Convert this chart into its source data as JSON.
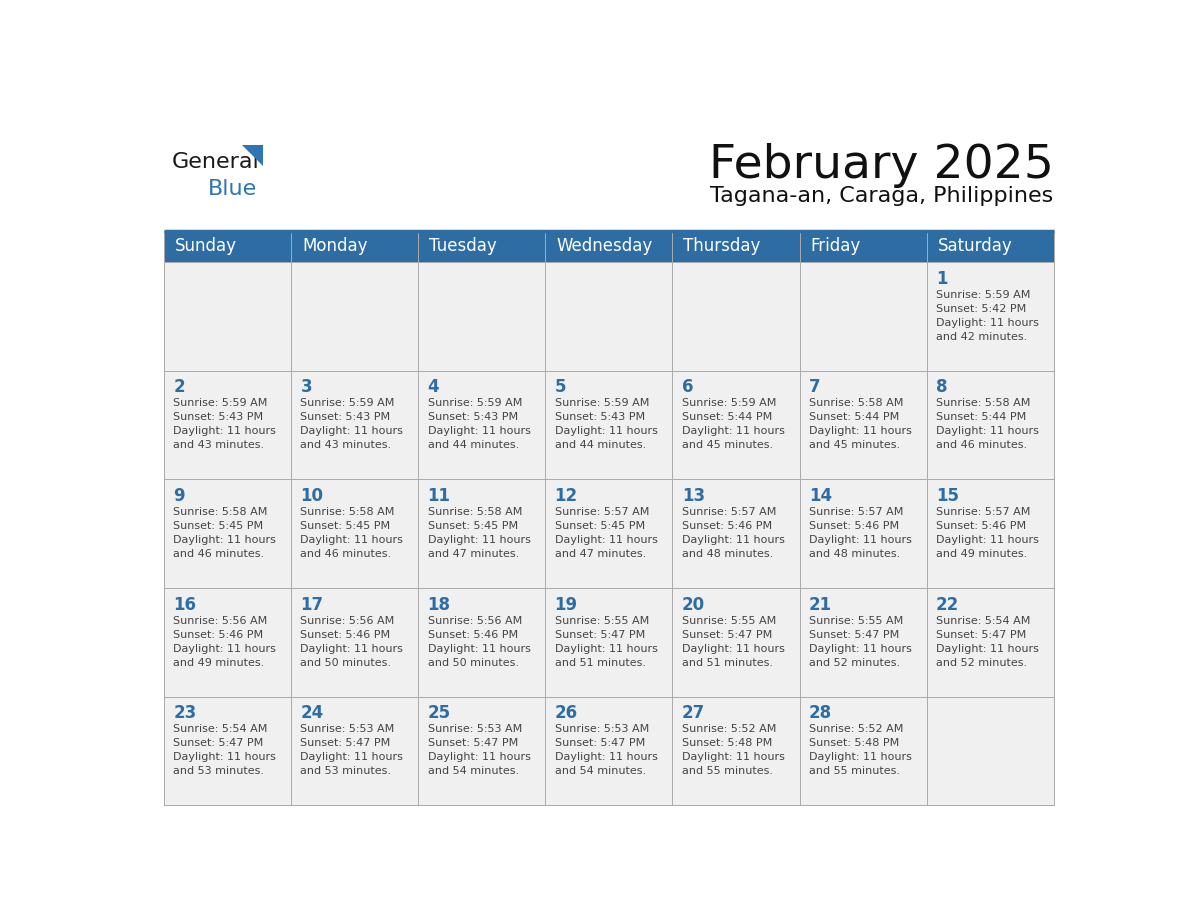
{
  "title": "February 2025",
  "subtitle": "Tagana-an, Caraga, Philippines",
  "header_bg": "#2E6DA4",
  "header_text": "#FFFFFF",
  "cell_bg": "#F0F0F0",
  "day_number_color": "#2E6DA4",
  "text_color": "#444444",
  "days_of_week": [
    "Sunday",
    "Monday",
    "Tuesday",
    "Wednesday",
    "Thursday",
    "Friday",
    "Saturday"
  ],
  "weeks": [
    [
      {
        "day": null,
        "info": null
      },
      {
        "day": null,
        "info": null
      },
      {
        "day": null,
        "info": null
      },
      {
        "day": null,
        "info": null
      },
      {
        "day": null,
        "info": null
      },
      {
        "day": null,
        "info": null
      },
      {
        "day": "1",
        "info": "Sunrise: 5:59 AM\nSunset: 5:42 PM\nDaylight: 11 hours\nand 42 minutes."
      }
    ],
    [
      {
        "day": "2",
        "info": "Sunrise: 5:59 AM\nSunset: 5:43 PM\nDaylight: 11 hours\nand 43 minutes."
      },
      {
        "day": "3",
        "info": "Sunrise: 5:59 AM\nSunset: 5:43 PM\nDaylight: 11 hours\nand 43 minutes."
      },
      {
        "day": "4",
        "info": "Sunrise: 5:59 AM\nSunset: 5:43 PM\nDaylight: 11 hours\nand 44 minutes."
      },
      {
        "day": "5",
        "info": "Sunrise: 5:59 AM\nSunset: 5:43 PM\nDaylight: 11 hours\nand 44 minutes."
      },
      {
        "day": "6",
        "info": "Sunrise: 5:59 AM\nSunset: 5:44 PM\nDaylight: 11 hours\nand 45 minutes."
      },
      {
        "day": "7",
        "info": "Sunrise: 5:58 AM\nSunset: 5:44 PM\nDaylight: 11 hours\nand 45 minutes."
      },
      {
        "day": "8",
        "info": "Sunrise: 5:58 AM\nSunset: 5:44 PM\nDaylight: 11 hours\nand 46 minutes."
      }
    ],
    [
      {
        "day": "9",
        "info": "Sunrise: 5:58 AM\nSunset: 5:45 PM\nDaylight: 11 hours\nand 46 minutes."
      },
      {
        "day": "10",
        "info": "Sunrise: 5:58 AM\nSunset: 5:45 PM\nDaylight: 11 hours\nand 46 minutes."
      },
      {
        "day": "11",
        "info": "Sunrise: 5:58 AM\nSunset: 5:45 PM\nDaylight: 11 hours\nand 47 minutes."
      },
      {
        "day": "12",
        "info": "Sunrise: 5:57 AM\nSunset: 5:45 PM\nDaylight: 11 hours\nand 47 minutes."
      },
      {
        "day": "13",
        "info": "Sunrise: 5:57 AM\nSunset: 5:46 PM\nDaylight: 11 hours\nand 48 minutes."
      },
      {
        "day": "14",
        "info": "Sunrise: 5:57 AM\nSunset: 5:46 PM\nDaylight: 11 hours\nand 48 minutes."
      },
      {
        "day": "15",
        "info": "Sunrise: 5:57 AM\nSunset: 5:46 PM\nDaylight: 11 hours\nand 49 minutes."
      }
    ],
    [
      {
        "day": "16",
        "info": "Sunrise: 5:56 AM\nSunset: 5:46 PM\nDaylight: 11 hours\nand 49 minutes."
      },
      {
        "day": "17",
        "info": "Sunrise: 5:56 AM\nSunset: 5:46 PM\nDaylight: 11 hours\nand 50 minutes."
      },
      {
        "day": "18",
        "info": "Sunrise: 5:56 AM\nSunset: 5:46 PM\nDaylight: 11 hours\nand 50 minutes."
      },
      {
        "day": "19",
        "info": "Sunrise: 5:55 AM\nSunset: 5:47 PM\nDaylight: 11 hours\nand 51 minutes."
      },
      {
        "day": "20",
        "info": "Sunrise: 5:55 AM\nSunset: 5:47 PM\nDaylight: 11 hours\nand 51 minutes."
      },
      {
        "day": "21",
        "info": "Sunrise: 5:55 AM\nSunset: 5:47 PM\nDaylight: 11 hours\nand 52 minutes."
      },
      {
        "day": "22",
        "info": "Sunrise: 5:54 AM\nSunset: 5:47 PM\nDaylight: 11 hours\nand 52 minutes."
      }
    ],
    [
      {
        "day": "23",
        "info": "Sunrise: 5:54 AM\nSunset: 5:47 PM\nDaylight: 11 hours\nand 53 minutes."
      },
      {
        "day": "24",
        "info": "Sunrise: 5:53 AM\nSunset: 5:47 PM\nDaylight: 11 hours\nand 53 minutes."
      },
      {
        "day": "25",
        "info": "Sunrise: 5:53 AM\nSunset: 5:47 PM\nDaylight: 11 hours\nand 54 minutes."
      },
      {
        "day": "26",
        "info": "Sunrise: 5:53 AM\nSunset: 5:47 PM\nDaylight: 11 hours\nand 54 minutes."
      },
      {
        "day": "27",
        "info": "Sunrise: 5:52 AM\nSunset: 5:48 PM\nDaylight: 11 hours\nand 55 minutes."
      },
      {
        "day": "28",
        "info": "Sunrise: 5:52 AM\nSunset: 5:48 PM\nDaylight: 11 hours\nand 55 minutes."
      },
      {
        "day": null,
        "info": null
      }
    ]
  ],
  "logo_general_color": "#1a1a1a",
  "logo_blue_color": "#2E75B6",
  "logo_triangle_color": "#2E75B6"
}
